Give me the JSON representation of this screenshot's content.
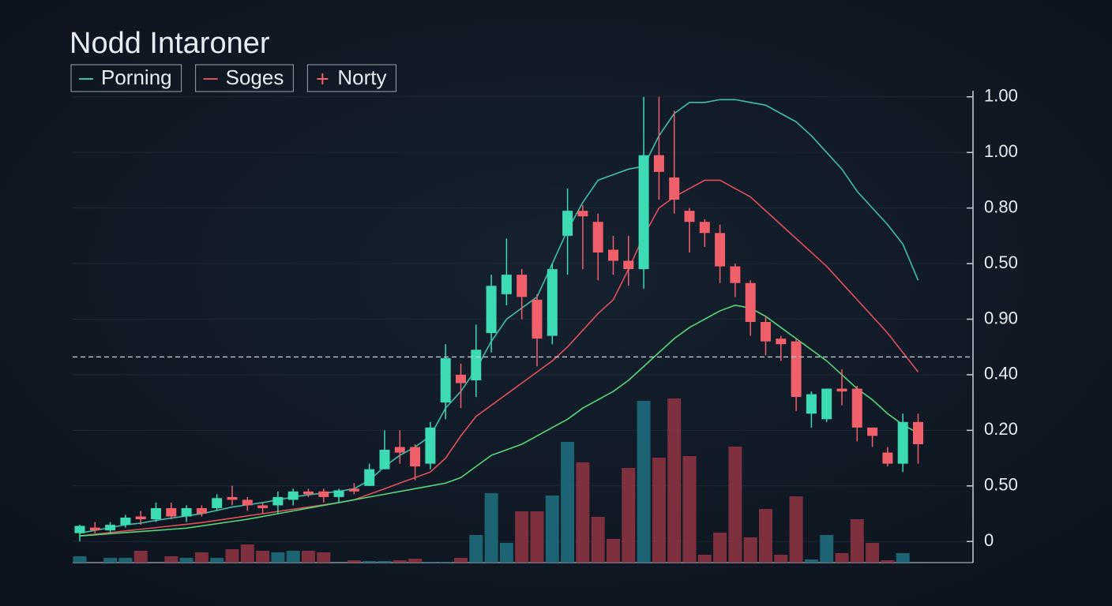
{
  "chart_data": {
    "type": "candlestick",
    "title": "Nodd Intaroner",
    "categories": [
      null,
      null,
      null,
      null,
      null,
      null,
      null,
      null,
      null,
      null,
      null,
      null,
      null,
      null,
      null,
      null,
      null,
      null,
      null,
      null,
      null,
      null,
      null,
      null,
      null,
      null,
      null,
      null,
      null,
      null,
      null,
      null,
      null,
      null,
      null,
      null,
      null,
      null,
      null,
      null,
      null,
      null,
      null,
      null,
      null,
      null,
      null,
      null,
      null,
      null,
      null,
      null,
      null,
      null,
      null,
      null
    ],
    "candles": {
      "name": "Norty",
      "up_color": "#3ddbb4",
      "down_color": "#f0606a",
      "open": [
        1.5,
        2.5,
        2,
        3,
        4.5,
        4,
        6,
        4.5,
        6,
        6,
        8,
        7.5,
        6.5,
        6.5,
        7.5,
        9,
        9,
        8,
        9.5,
        10,
        13,
        17,
        17,
        14,
        25,
        30,
        29,
        37.5,
        44.5,
        48,
        43.5,
        37,
        55,
        59.5,
        57.5,
        52.5,
        50.5,
        49,
        69.5,
        65.5,
        59.5,
        57.5,
        55.5,
        49.5,
        46.5,
        39.5,
        36.5,
        36,
        23,
        22,
        27.5,
        27.5,
        20.5,
        16,
        14,
        21.5
      ],
      "high": [
        3,
        3.5,
        3.5,
        4.8,
        5.5,
        7,
        7,
        6.5,
        6.5,
        8.5,
        10,
        8,
        7,
        9,
        9.5,
        9.5,
        9.5,
        9.5,
        10.5,
        14,
        20,
        20,
        17.5,
        21.5,
        35.5,
        32,
        39,
        48,
        54.5,
        49,
        44.5,
        50,
        63.5,
        60.5,
        59,
        55,
        55,
        80,
        80,
        77.5,
        60,
        58,
        57,
        50,
        47,
        40.5,
        37,
        36.5,
        27,
        27.5,
        31,
        28,
        20.5,
        17,
        23,
        23
      ],
      "low": [
        0,
        1.5,
        1.5,
        2.5,
        3,
        3.5,
        4,
        3.5,
        4.5,
        5.5,
        6.5,
        5.5,
        5,
        5,
        6.5,
        8,
        7,
        7,
        8.5,
        10,
        13,
        14,
        11,
        13,
        22,
        24,
        26,
        34,
        42.5,
        40,
        31.5,
        35.5,
        48,
        49,
        47,
        48,
        46,
        45.5,
        61.5,
        59,
        52,
        53,
        46.5,
        44,
        37,
        33.5,
        32.5,
        23.5,
        20.5,
        21.5,
        24.5,
        18,
        17,
        13.5,
        12.5,
        14
      ],
      "close": [
        2.8,
        2,
        3,
        4.3,
        4,
        6,
        4.5,
        6,
        5,
        7.8,
        7.5,
        6.5,
        6,
        8,
        9,
        8.5,
        8,
        9.2,
        9,
        13,
        16.5,
        16,
        13.5,
        20.5,
        33,
        28.5,
        34.5,
        46,
        48,
        44,
        36.5,
        49,
        59.5,
        58.5,
        52,
        50.5,
        49,
        69.5,
        66.5,
        61.5,
        57.5,
        55.5,
        49.5,
        46.5,
        39.5,
        36,
        35.5,
        26,
        26.5,
        27.5,
        27,
        20.5,
        19,
        14,
        21.5,
        17.5
      ]
    },
    "series": [
      {
        "name": "Porning",
        "color": "#3fbfaa",
        "values": [
          1.5,
          2,
          2.5,
          3,
          3.3,
          3.8,
          4.2,
          4.6,
          5,
          5.6,
          6.2,
          6.6,
          7,
          7.5,
          8,
          8.4,
          8.7,
          9,
          9.5,
          11,
          13.5,
          15.5,
          17,
          19,
          24,
          27,
          31,
          36,
          40,
          42,
          44,
          50,
          56,
          61,
          65,
          66,
          67,
          67.5,
          73,
          77,
          79,
          79,
          79.5,
          79.5,
          79,
          78.5,
          77,
          75.5,
          73,
          70,
          67,
          63,
          60,
          57,
          53.5,
          47
        ]
      },
      {
        "name": "Soges",
        "color": "#e0505a",
        "values": [
          1,
          1.3,
          1.6,
          1.9,
          2.2,
          2.5,
          2.8,
          3.1,
          3.4,
          3.8,
          4.2,
          4.6,
          5,
          5.4,
          5.8,
          6.2,
          6.6,
          7,
          7.5,
          8.5,
          9.5,
          10.5,
          11.5,
          12.5,
          15,
          19,
          22.5,
          24.5,
          26.5,
          28.5,
          30.5,
          32.5,
          35,
          38,
          41,
          43.5,
          49,
          55,
          60,
          62,
          63.5,
          65,
          65,
          63.5,
          62,
          59.5,
          57,
          54.5,
          52,
          49.5,
          46.5,
          43.5,
          40.5,
          37.5,
          34,
          30.5
        ]
      },
      {
        "color": "#56d67a",
        "values": [
          1,
          1.2,
          1.4,
          1.6,
          1.8,
          2,
          2.2,
          2.4,
          2.8,
          3.2,
          3.6,
          4,
          4.5,
          5,
          5.5,
          6,
          6.5,
          7,
          7.5,
          8,
          8.5,
          9,
          9.5,
          10,
          10.5,
          11.5,
          13.5,
          15.5,
          16.5,
          17.5,
          19,
          20.5,
          22,
          24,
          25.5,
          27,
          29,
          31.5,
          34,
          36.5,
          38.5,
          40,
          41.5,
          42.5,
          42,
          40.5,
          38.5,
          36.5,
          34.5,
          32.5,
          30,
          27.5,
          25.5,
          23,
          21,
          19.5
        ]
      }
    ],
    "volume": {
      "up_color": "#1e6b7d",
      "down_color": "#8c3342",
      "values": [
        8,
        0,
        6,
        6,
        15,
        0,
        8,
        6,
        13,
        6,
        17,
        23,
        15,
        13,
        15,
        15,
        13,
        0,
        3,
        2,
        2,
        3,
        5,
        1,
        1,
        6,
        35,
        88,
        25,
        65,
        65,
        85,
        153,
        127,
        58,
        30,
        120,
        205,
        133,
        208,
        135,
        10,
        38,
        147,
        32,
        68,
        10,
        84,
        4,
        35,
        12,
        55,
        25,
        3,
        12,
        0
      ]
    },
    "reference_line": 33.2,
    "ylim": [
      -3.8,
      81.1
    ],
    "yticks": [
      0,
      {
        "value": 10,
        "label": "0.50"
      },
      {
        "value": 20,
        "label": "0.20"
      },
      {
        "value": 30,
        "label": "0.40"
      },
      {
        "value": 40,
        "label": "0.90"
      },
      {
        "value": 50,
        "label": "0.50"
      },
      {
        "value": 60,
        "label": "0.80"
      },
      {
        "value": 70,
        "label": "1.00"
      },
      {
        "value": 80,
        "label": "1.00"
      }
    ],
    "grid": true
  }
}
